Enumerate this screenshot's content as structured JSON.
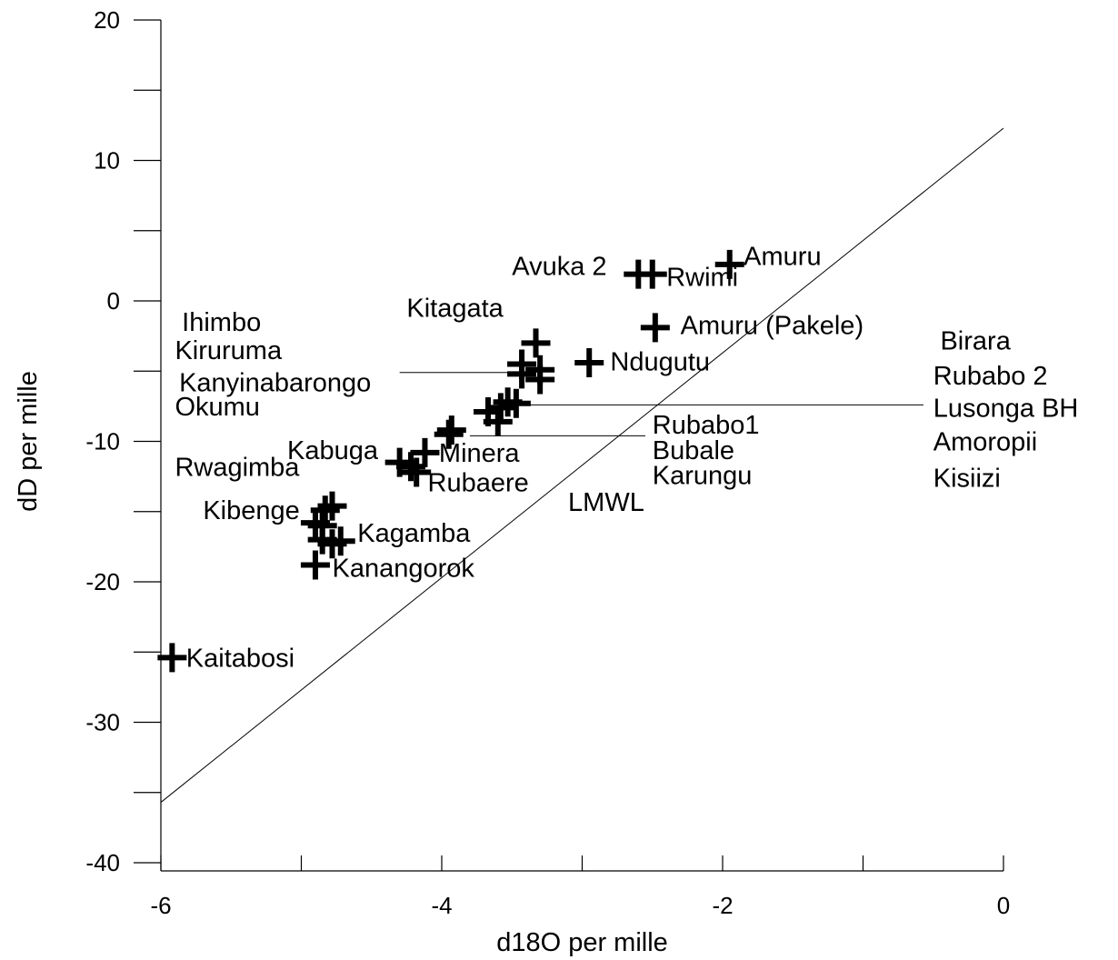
{
  "chart_data": {
    "type": "scatter",
    "title": "",
    "xlabel": "d18O per mille",
    "ylabel": "dD per mille",
    "xlim": [
      -6,
      0
    ],
    "ylim": [
      -40,
      20
    ],
    "xticks": [
      -6,
      -4,
      -2,
      0
    ],
    "yticks": [
      -40,
      -30,
      -20,
      -10,
      0,
      10,
      20
    ],
    "grid": false,
    "marker": "plus",
    "points": [
      {
        "x": -5.92,
        "y": -25.4
      },
      {
        "x": -4.9,
        "y": -18.8
      },
      {
        "x": -4.85,
        "y": -16.0
      },
      {
        "x": -4.9,
        "y": -15.8
      },
      {
        "x": -4.85,
        "y": -17.0
      },
      {
        "x": -4.78,
        "y": -17.3
      },
      {
        "x": -4.72,
        "y": -17.1
      },
      {
        "x": -4.83,
        "y": -14.9
      },
      {
        "x": -4.78,
        "y": -14.6
      },
      {
        "x": -4.3,
        "y": -11.5
      },
      {
        "x": -4.22,
        "y": -11.8
      },
      {
        "x": -4.18,
        "y": -12.2
      },
      {
        "x": -4.12,
        "y": -10.8
      },
      {
        "x": -3.95,
        "y": -9.5
      },
      {
        "x": -3.93,
        "y": -9.2
      },
      {
        "x": -3.67,
        "y": -7.9
      },
      {
        "x": -3.6,
        "y": -8.6
      },
      {
        "x": -3.58,
        "y": -7.6
      },
      {
        "x": -3.53,
        "y": -7.2
      },
      {
        "x": -3.47,
        "y": -7.3
      },
      {
        "x": -3.43,
        "y": -4.5
      },
      {
        "x": -3.43,
        "y": -5.2
      },
      {
        "x": -3.33,
        "y": -3.0
      },
      {
        "x": -3.3,
        "y": -4.9
      },
      {
        "x": -3.3,
        "y": -5.6
      },
      {
        "x": -2.95,
        "y": -4.4
      },
      {
        "x": -2.6,
        "y": 1.9
      },
      {
        "x": -2.5,
        "y": 1.9
      },
      {
        "x": -2.48,
        "y": -1.9
      },
      {
        "x": -1.95,
        "y": 2.6
      }
    ],
    "labels": [
      {
        "text": "Kaitabosi",
        "x": -5.82,
        "y": -25.4
      },
      {
        "text": "Kanangorok",
        "x": -4.78,
        "y": -19.0
      },
      {
        "text": "Kagamba",
        "x": -4.6,
        "y": -16.5
      },
      {
        "text": "Kibenge",
        "x": -5.7,
        "y": -14.9
      },
      {
        "text": "Rwagimba",
        "x": -5.9,
        "y": -11.8
      },
      {
        "text": "Kabuga",
        "x": -5.1,
        "y": -10.6
      },
      {
        "text": "Minera",
        "x": -4.02,
        "y": -10.8
      },
      {
        "text": "Rubaere",
        "x": -4.1,
        "y": -12.9
      },
      {
        "text": "Okumu",
        "x": -5.9,
        "y": -7.5
      },
      {
        "text": "Kanyinabarongo",
        "x": -5.87,
        "y": -5.8
      },
      {
        "text": "Kiruruma",
        "x": -5.9,
        "y": -3.5
      },
      {
        "text": "Ihimbo",
        "x": -5.85,
        "y": -1.5
      },
      {
        "text": "Kitagata",
        "x": -4.25,
        "y": -0.5
      },
      {
        "text": "Ndugutu",
        "x": -2.8,
        "y": -4.3
      },
      {
        "text": "Amuru (Pakele)",
        "x": -2.3,
        "y": -1.7
      },
      {
        "text": "Avuka 2",
        "x": -3.5,
        "y": 2.5
      },
      {
        "text": "Rwimi",
        "x": -2.4,
        "y": 1.7
      },
      {
        "text": "Amuru",
        "x": -1.85,
        "y": 3.2
      },
      {
        "text": "Rubabo1",
        "x": -2.5,
        "y": -8.8
      },
      {
        "text": "Bubale",
        "x": -2.5,
        "y": -10.6
      },
      {
        "text": "Karungu",
        "x": -2.5,
        "y": -12.4
      },
      {
        "text": "LMWL",
        "x": -3.1,
        "y": -14.3
      },
      {
        "text": "Birara",
        "x": -0.45,
        "y": -2.8
      },
      {
        "text": "Rubabo 2",
        "x": -0.5,
        "y": -5.3
      },
      {
        "text": "Lusonga BH",
        "x": -0.5,
        "y": -7.6
      },
      {
        "text": "Amoropii",
        "x": -0.5,
        "y": -10.0
      },
      {
        "text": "Kisiizi",
        "x": -0.5,
        "y": -12.6
      }
    ],
    "lines": [
      {
        "name": "LMWL",
        "x": [
          -6.0,
          0.0
        ],
        "y": [
          -35.7,
          12.3
        ]
      }
    ],
    "leaders": [
      {
        "x": [
          -4.3,
          -3.5
        ],
        "y": [
          -5.1,
          -5.1
        ]
      },
      {
        "x": [
          -3.5,
          -0.57
        ],
        "y": [
          -7.4,
          -7.4
        ]
      },
      {
        "x": [
          -3.8,
          -2.55
        ],
        "y": [
          -9.6,
          -9.6
        ]
      }
    ]
  }
}
